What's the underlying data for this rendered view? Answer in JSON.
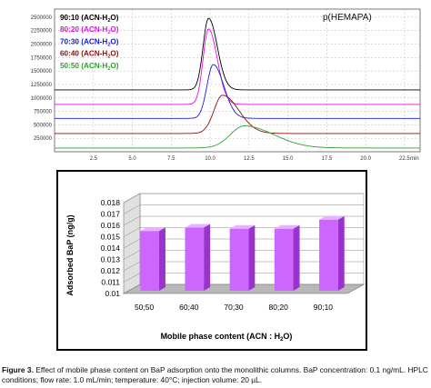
{
  "chart_data": [
    {
      "type": "line",
      "title": "p(HEMAPA)",
      "x_unit": "min",
      "x_ticks": [
        "2.5",
        "5.0",
        "7.5",
        "10.0",
        "12.5",
        "15.0",
        "17.5",
        "20.0",
        "22.5"
      ],
      "xlim": [
        0,
        23.5
      ],
      "y_ticks": [
        "250000",
        "500000",
        "750000",
        "1000000",
        "1250000",
        "1500000",
        "1750000",
        "2000000",
        "2250000",
        "2500000"
      ],
      "ylim": [
        0,
        2650000
      ],
      "grid": true,
      "legend_position": "top-left",
      "series": [
        {
          "name": "90:10 (ACN-H",
          "sub": "2",
          "suffix": "O)",
          "color": "#000000",
          "baseline": 1150000,
          "peak_x": 9.9,
          "peak_y": 2480000,
          "width": 0.35,
          "tail": 1.6
        },
        {
          "name": "80:20 (ACN-H",
          "sub": "2",
          "suffix": "O)",
          "color": "#e010e0",
          "baseline": 880000,
          "peak_x": 9.9,
          "peak_y": 2280000,
          "width": 0.35,
          "tail": 1.6
        },
        {
          "name": "70:30 (ACN-H",
          "sub": "2",
          "suffix": "O)",
          "color": "#1a1ae0",
          "baseline": 620000,
          "peak_x": 10.2,
          "peak_y": 1620000,
          "width": 0.4,
          "tail": 1.7
        },
        {
          "name": "60:40 (ACN-H",
          "sub": "2",
          "suffix": "O)",
          "color": "#8b1010",
          "baseline": 340000,
          "peak_x": 10.8,
          "peak_y": 1050000,
          "width": 0.55,
          "tail": 1.9
        },
        {
          "name": "50:50 (ACN-H",
          "sub": "2",
          "suffix": "O)",
          "color": "#30a030",
          "baseline": 70000,
          "peak_x": 12.2,
          "peak_y": 480000,
          "width": 0.9,
          "tail": 2.1
        }
      ]
    },
    {
      "type": "bar",
      "categories": [
        "50;50",
        "60;40",
        "70;30",
        "80;20",
        "90;10"
      ],
      "values": [
        0.0155,
        0.0158,
        0.0157,
        0.0157,
        0.0165
      ],
      "ylim": [
        0.01,
        0.018
      ],
      "y_ticks": [
        "0.018",
        "0.017",
        "0.016",
        "0.015",
        "0.014",
        "0.013",
        "0.012",
        "0.011",
        "0.01"
      ],
      "ylabel": "Adsorbed BaP (ng/g)",
      "xlabel": "Mobile phase content (ACN : H",
      "xlabel_sub": "2",
      "xlabel_suffix": "O)",
      "bar_color": "#cc66ff"
    }
  ],
  "caption": {
    "label": "Figure 3.",
    "text": " Effect of mobile phase content on BaP adsorption onto the monolithic columns. BaP concentration: 0.1 ng/mL. HPLC conditions; flow rate: 1.0 mL/min; temperature: 40°C; injection volume: 20 µL."
  }
}
